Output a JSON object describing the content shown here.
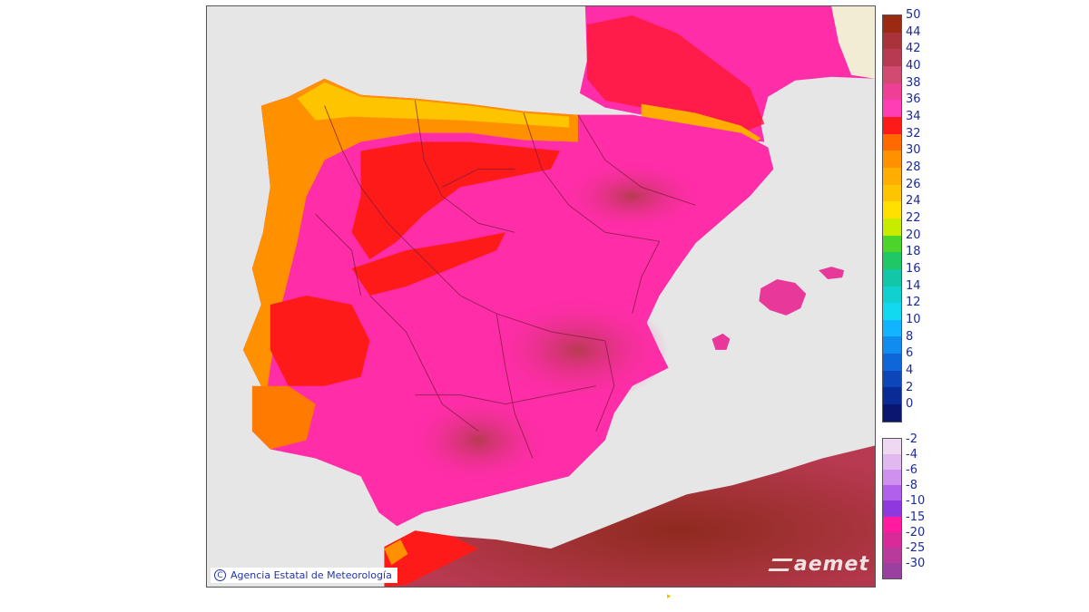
{
  "map": {
    "copyright_text": "Agencia Estatal de Meteorología",
    "copyright_symbol": "C",
    "logo_text": "aemet",
    "colors": {
      "sea": "#e6e6e6",
      "france_land": "#f3ecd4",
      "region_borders": "#7a1a3a",
      "coast": "#b0306a"
    }
  },
  "legend_positive": {
    "labels": [
      "50",
      "44",
      "42",
      "40",
      "38",
      "36",
      "34",
      "32",
      "30",
      "28",
      "26",
      "24",
      "22",
      "20",
      "18",
      "16",
      "14",
      "12",
      "10",
      "8",
      "6",
      "4",
      "2",
      "0"
    ],
    "colors": [
      "#9a2a12",
      "#a8333b",
      "#b83a52",
      "#d24a72",
      "#ee3f94",
      "#ff3db5",
      "#ff1a1a",
      "#ff6a00",
      "#ff9100",
      "#ffad00",
      "#ffc400",
      "#ffe000",
      "#c8ec00",
      "#4cd42a",
      "#1ec864",
      "#12c6a8",
      "#10d0d0",
      "#12d8f0",
      "#12b4ff",
      "#108cf0",
      "#0e66d8",
      "#0c46b8",
      "#0a2a96",
      "#0a1670"
    ]
  },
  "legend_negative": {
    "labels": [
      "-2",
      "-4",
      "-6",
      "-8",
      "-10",
      "-15",
      "-20",
      "-25",
      "-30"
    ],
    "colors": [
      "#efd8f2",
      "#e2b8f0",
      "#cf90ee",
      "#b060ea",
      "#9038e0",
      "#ff1aa0",
      "#d92a9a",
      "#b83a9a",
      "#9a40a0"
    ]
  }
}
